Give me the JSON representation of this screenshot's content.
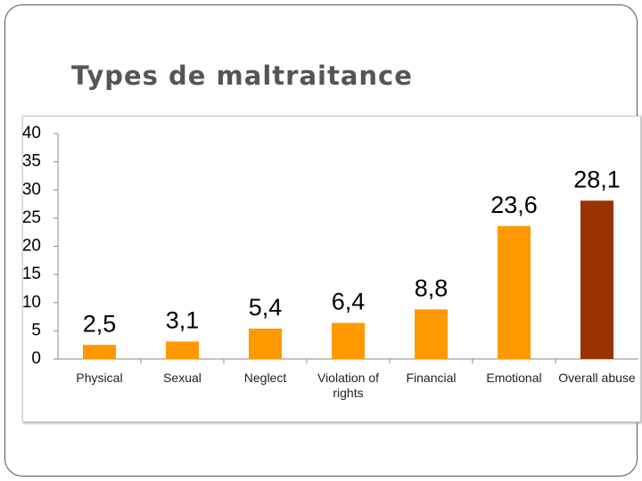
{
  "title": "Types de maltraitance",
  "chart_data": {
    "type": "bar",
    "categories": [
      "Physical",
      "Sexual",
      "Neglect",
      "Violation of rights",
      "Financial",
      "Emotional",
      "Overall abuse"
    ],
    "values": [
      2.5,
      3.1,
      5.4,
      6.4,
      8.8,
      23.6,
      28.1
    ],
    "value_labels": [
      "2,5",
      "3,1",
      "5,4",
      "6,4",
      "8,8",
      "23,6",
      "28,1"
    ],
    "colors": [
      "#ff9900",
      "#ff9900",
      "#ff9900",
      "#ff9900",
      "#ff9900",
      "#ff9900",
      "#993300"
    ],
    "ylim": [
      0,
      40
    ],
    "yticks": [
      0,
      5,
      10,
      15,
      20,
      25,
      30,
      35,
      40
    ],
    "grid": false
  }
}
